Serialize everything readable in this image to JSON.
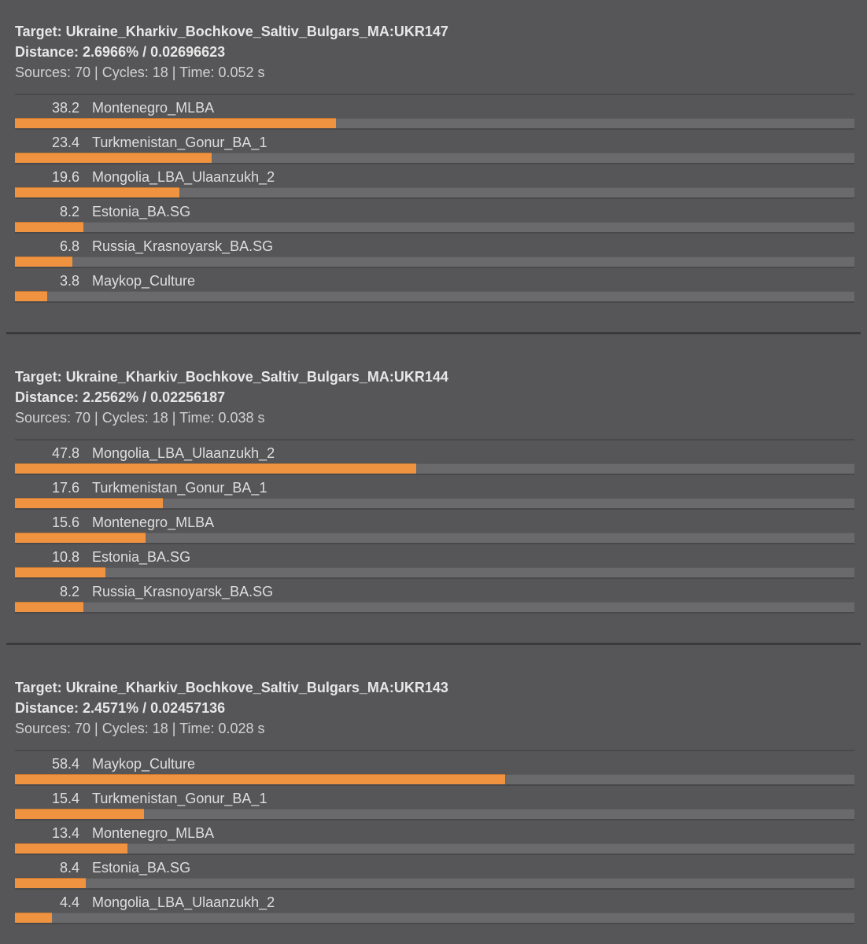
{
  "colors": {
    "background": "#565658",
    "bar_fill": "#ef9340",
    "bar_track": "#6a6a6c",
    "separator": "#3a3a3c",
    "header_text": "#e7e7e8",
    "meta_text": "#d2d2d3",
    "label_text": "#dedede"
  },
  "blocks": [
    {
      "target_line": "Target: Ukraine_Kharkiv_Bochkove_Saltiv_Bulgars_MA:UKR147",
      "distance_line": "Distance: 2.6966% / 0.02696623",
      "meta_line": "Sources: 70 | Cycles: 18 | Time: 0.052 s",
      "rows": [
        {
          "value": "38.2",
          "label": "Montenegro_MLBA",
          "percent": 38.2
        },
        {
          "value": "23.4",
          "label": "Turkmenistan_Gonur_BA_1",
          "percent": 23.4
        },
        {
          "value": "19.6",
          "label": "Mongolia_LBA_Ulaanzukh_2",
          "percent": 19.6
        },
        {
          "value": "8.2",
          "label": "Estonia_BA.SG",
          "percent": 8.2
        },
        {
          "value": "6.8",
          "label": "Russia_Krasnoyarsk_BA.SG",
          "percent": 6.8
        },
        {
          "value": "3.8",
          "label": "Maykop_Culture",
          "percent": 3.8
        }
      ]
    },
    {
      "target_line": "Target: Ukraine_Kharkiv_Bochkove_Saltiv_Bulgars_MA:UKR144",
      "distance_line": "Distance: 2.2562% / 0.02256187",
      "meta_line": "Sources: 70 | Cycles: 18 | Time: 0.038 s",
      "rows": [
        {
          "value": "47.8",
          "label": "Mongolia_LBA_Ulaanzukh_2",
          "percent": 47.8
        },
        {
          "value": "17.6",
          "label": "Turkmenistan_Gonur_BA_1",
          "percent": 17.6
        },
        {
          "value": "15.6",
          "label": "Montenegro_MLBA",
          "percent": 15.6
        },
        {
          "value": "10.8",
          "label": "Estonia_BA.SG",
          "percent": 10.8
        },
        {
          "value": "8.2",
          "label": "Russia_Krasnoyarsk_BA.SG",
          "percent": 8.2
        }
      ]
    },
    {
      "target_line": "Target: Ukraine_Kharkiv_Bochkove_Saltiv_Bulgars_MA:UKR143",
      "distance_line": "Distance: 2.4571% / 0.02457136",
      "meta_line": "Sources: 70 | Cycles: 18 | Time: 0.028 s",
      "rows": [
        {
          "value": "58.4",
          "label": "Maykop_Culture",
          "percent": 58.4
        },
        {
          "value": "15.4",
          "label": "Turkmenistan_Gonur_BA_1",
          "percent": 15.4
        },
        {
          "value": "13.4",
          "label": "Montenegro_MLBA",
          "percent": 13.4
        },
        {
          "value": "8.4",
          "label": "Estonia_BA.SG",
          "percent": 8.4
        },
        {
          "value": "4.4",
          "label": "Mongolia_LBA_Ulaanzukh_2",
          "percent": 4.4
        }
      ]
    }
  ],
  "chart_data": [
    {
      "type": "bar",
      "orientation": "horizontal",
      "title": "Target: Ukraine_Kharkiv_Bochkove_Saltiv_Bulgars_MA:UKR147",
      "subtitle": "Distance: 2.6966% / 0.02696623",
      "annotation": "Sources: 70 | Cycles: 18 | Time: 0.052 s",
      "categories": [
        "Montenegro_MLBA",
        "Turkmenistan_Gonur_BA_1",
        "Mongolia_LBA_Ulaanzukh_2",
        "Estonia_BA.SG",
        "Russia_Krasnoyarsk_BA.SG",
        "Maykop_Culture"
      ],
      "values": [
        38.2,
        23.4,
        19.6,
        8.2,
        6.8,
        3.8
      ],
      "xlabel": "",
      "ylabel": "",
      "xlim": [
        0,
        100
      ],
      "grid": false,
      "legend": false
    },
    {
      "type": "bar",
      "orientation": "horizontal",
      "title": "Target: Ukraine_Kharkiv_Bochkove_Saltiv_Bulgars_MA:UKR144",
      "subtitle": "Distance: 2.2562% / 0.02256187",
      "annotation": "Sources: 70 | Cycles: 18 | Time: 0.038 s",
      "categories": [
        "Mongolia_LBA_Ulaanzukh_2",
        "Turkmenistan_Gonur_BA_1",
        "Montenegro_MLBA",
        "Estonia_BA.SG",
        "Russia_Krasnoyarsk_BA.SG"
      ],
      "values": [
        47.8,
        17.6,
        15.6,
        10.8,
        8.2
      ],
      "xlabel": "",
      "ylabel": "",
      "xlim": [
        0,
        100
      ],
      "grid": false,
      "legend": false
    },
    {
      "type": "bar",
      "orientation": "horizontal",
      "title": "Target: Ukraine_Kharkiv_Bochkove_Saltiv_Bulgars_MA:UKR143",
      "subtitle": "Distance: 2.4571% / 0.02457136",
      "annotation": "Sources: 70 | Cycles: 18 | Time: 0.028 s",
      "categories": [
        "Maykop_Culture",
        "Turkmenistan_Gonur_BA_1",
        "Montenegro_MLBA",
        "Estonia_BA.SG",
        "Mongolia_LBA_Ulaanzukh_2"
      ],
      "values": [
        58.4,
        15.4,
        13.4,
        8.4,
        4.4
      ],
      "xlabel": "",
      "ylabel": "",
      "xlim": [
        0,
        100
      ],
      "grid": false,
      "legend": false
    }
  ]
}
